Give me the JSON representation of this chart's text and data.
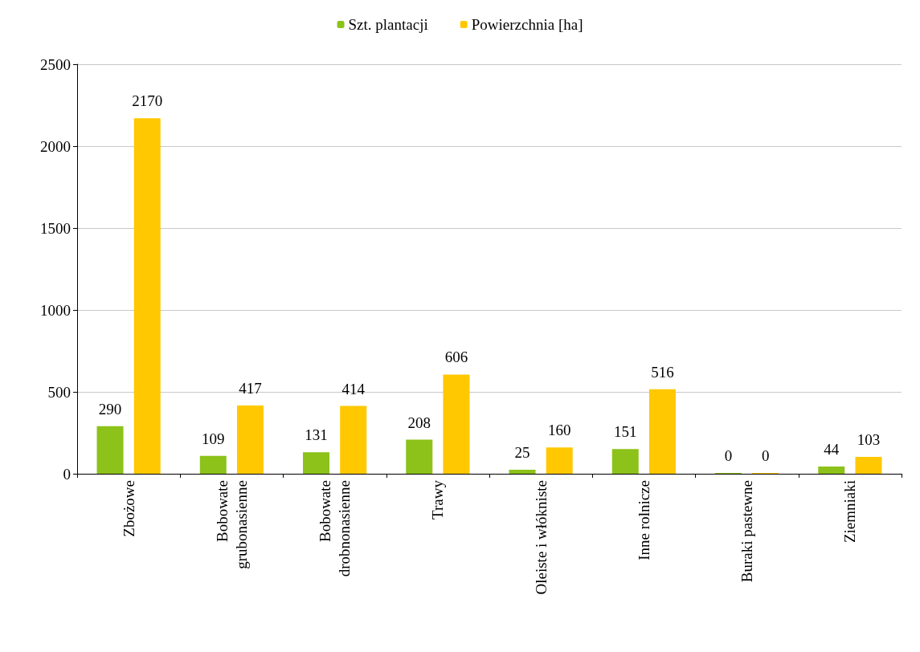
{
  "chart_data": {
    "type": "bar",
    "categories": [
      "Zbożowe",
      "Bobowate grubonasienne",
      "Bobowate drobnonasienne",
      "Trawy",
      "Oleiste i włókniste",
      "Inne rolnicze",
      "Buraki pastewne",
      "Ziemniaki"
    ],
    "series": [
      {
        "name": "Szt. plantacji",
        "color": "#8cc21a",
        "values": [
          290,
          109,
          131,
          208,
          25,
          151,
          0,
          44
        ]
      },
      {
        "name": "Powierzchnia [ha]",
        "color": "#ffc800",
        "values": [
          2170,
          417,
          414,
          606,
          160,
          516,
          0,
          103
        ]
      }
    ],
    "ylim": [
      0,
      2500
    ],
    "yticks": [
      0,
      500,
      1000,
      1500,
      2000,
      2500
    ],
    "grid": "y",
    "legend": "top",
    "data_labels": true
  }
}
